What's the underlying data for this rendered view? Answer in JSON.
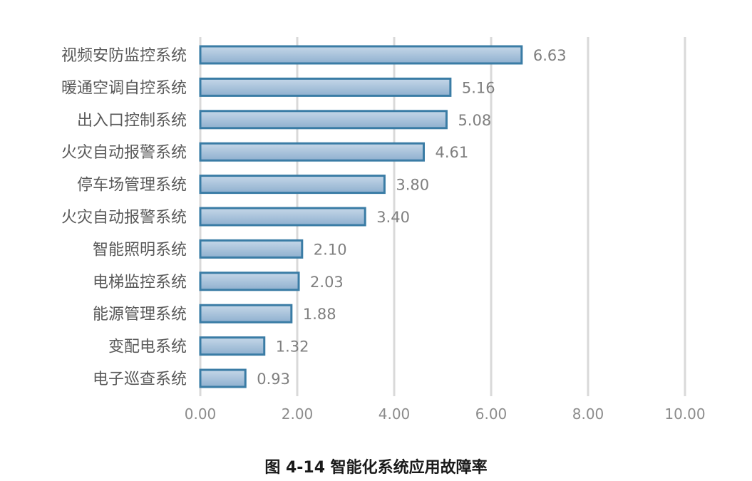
{
  "caption": "图 4-14 智能化系统应用故障率",
  "chart_data": {
    "type": "bar",
    "orientation": "horizontal",
    "title": "",
    "xlabel": "",
    "ylabel": "",
    "xlim": [
      0,
      10
    ],
    "xticks": [
      "0.00",
      "2.00",
      "4.00",
      "6.00",
      "8.00",
      "10.00"
    ],
    "grid": "vertical",
    "categories": [
      "视频安防监控系统",
      "暖通空调自控系统",
      "出入口控制系统",
      "火灾自动报警系统",
      "停车场管理系统",
      "火灾自动报警系统",
      "智能照明系统",
      "电梯监控系统",
      "能源管理系统",
      "变配电系统",
      "电子巡查系统"
    ],
    "values": [
      6.63,
      5.16,
      5.08,
      4.61,
      3.8,
      3.4,
      2.1,
      2.03,
      1.88,
      1.32,
      0.93
    ],
    "value_labels": [
      "6.63",
      "5.16",
      "5.08",
      "4.61",
      "3.80",
      "3.40",
      "2.10",
      "2.03",
      "1.88",
      "1.32",
      "0.93"
    ],
    "colors": {
      "bar_top": "#c5d7e8",
      "bar_bottom": "#8fb0cf",
      "bar_border": "#3a7ca5",
      "grid": "#d9d9d9"
    }
  }
}
